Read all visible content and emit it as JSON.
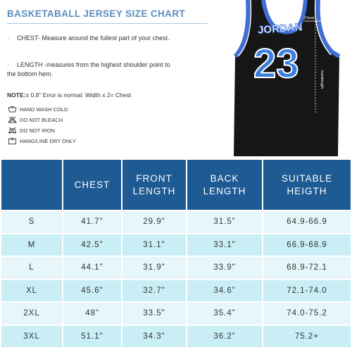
{
  "header": {
    "title": "BASKETABALL JERSEY SIZE CHART"
  },
  "instructions": [
    {
      "bullet": "·",
      "text": "CHEST- Measure around the fullest part of your chest."
    },
    {
      "bullet": "·",
      "text": "LENGTH -measures from the highest shoulder point to the bottom hem."
    }
  ],
  "note": {
    "label": "NOTE:",
    "text": "± 0.8\" Error is normal. Width x 2= Chest"
  },
  "care": [
    {
      "icon": "hand-wash-icon",
      "text": "HAND WASH COLD"
    },
    {
      "icon": "no-bleach-icon",
      "text": "DO NOT BLEACH"
    },
    {
      "icon": "no-iron-icon",
      "text": "DO NOT IRON"
    },
    {
      "icon": "hang-dry-icon",
      "text": "HANG/LINE DRY ONLY"
    }
  ],
  "jersey": {
    "name_text": "JORDAN",
    "number_text": "23",
    "chest_label": "Chest",
    "length_label": "frontlength",
    "colors": {
      "body": "#161616",
      "trim": "#3e6fd6",
      "number": "#3a7fe0",
      "white": "#ffffff"
    }
  },
  "table": {
    "header_color": "#1e5a93",
    "headers": [
      {
        "lines": [
          ""
        ]
      },
      {
        "lines": [
          "CHEST"
        ]
      },
      {
        "lines": [
          "FRONT",
          "LENGTH"
        ]
      },
      {
        "lines": [
          "BACK",
          "LENGTH"
        ]
      },
      {
        "lines": [
          "SUITABLE",
          "HEIGTH"
        ]
      }
    ],
    "rows": [
      {
        "size": "S",
        "chest": "41.7\"",
        "front": "29.9\"",
        "back": "31.5”",
        "height": "64.9-66.9",
        "shade": "#e6f6fa"
      },
      {
        "size": "M",
        "chest": "42.5\"",
        "front": "31.1\"",
        "back": "33.1\"",
        "height": "66.9-68.9",
        "shade": "#c9eef5"
      },
      {
        "size": "L",
        "chest": "44.1\"",
        "front": "31.9\"",
        "back": "33.9\"",
        "height": "68.9-72.1",
        "shade": "#e6f6fa"
      },
      {
        "size": "XL",
        "chest": "45.6\"",
        "front": "32.7\"",
        "back": "34.6”",
        "height": "72.1-74.0",
        "shade": "#c9eef5"
      },
      {
        "size": "2XL",
        "chest": "48”",
        "front": "33.5\"",
        "back": "35.4”",
        "height": "74.0-75.2",
        "shade": "#e6f6fa"
      },
      {
        "size": "3XL",
        "chest": "51.1\"",
        "front": "34.3\"",
        "back": "36.2”",
        "height": "75.2+",
        "shade": "#c9eef5"
      }
    ]
  }
}
